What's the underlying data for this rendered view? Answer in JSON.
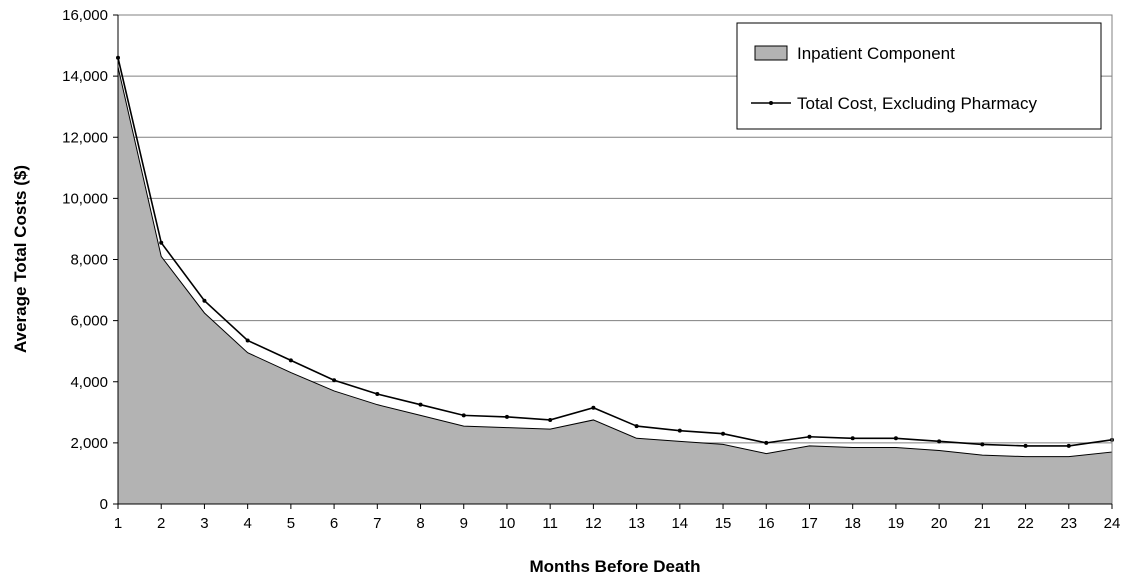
{
  "chart_data": {
    "type": "area",
    "title": "",
    "xlabel": "Months Before Death",
    "ylabel": "Average Total Costs ($)",
    "categories": [
      1,
      2,
      3,
      4,
      5,
      6,
      7,
      8,
      9,
      10,
      11,
      12,
      13,
      14,
      15,
      16,
      17,
      18,
      19,
      20,
      21,
      22,
      23,
      24
    ],
    "ylim": [
      0,
      16000
    ],
    "yticks": [
      0,
      2000,
      4000,
      6000,
      8000,
      10000,
      12000,
      14000,
      16000
    ],
    "ytick_labels": [
      "0",
      "2,000",
      "4,000",
      "6,000",
      "8,000",
      "10,000",
      "12,000",
      "14,000",
      "16,000"
    ],
    "grid": true,
    "legend_position": "top-right",
    "series": [
      {
        "name": "Inpatient Component",
        "kind": "area",
        "color": "#b3b3b3",
        "values": [
          14300,
          8100,
          6250,
          4950,
          4300,
          3700,
          3250,
          2900,
          2550,
          2500,
          2450,
          2750,
          2150,
          2050,
          1950,
          1650,
          1900,
          1850,
          1850,
          1750,
          1600,
          1550,
          1550,
          1700
        ]
      },
      {
        "name": "Total Cost, Excluding Pharmacy",
        "kind": "line",
        "color": "#000000",
        "values": [
          14600,
          8550,
          6650,
          5350,
          4700,
          4050,
          3600,
          3250,
          2900,
          2850,
          2750,
          3150,
          2550,
          2400,
          2300,
          2000,
          2200,
          2150,
          2150,
          2050,
          1950,
          1900,
          1900,
          2100
        ]
      }
    ]
  }
}
